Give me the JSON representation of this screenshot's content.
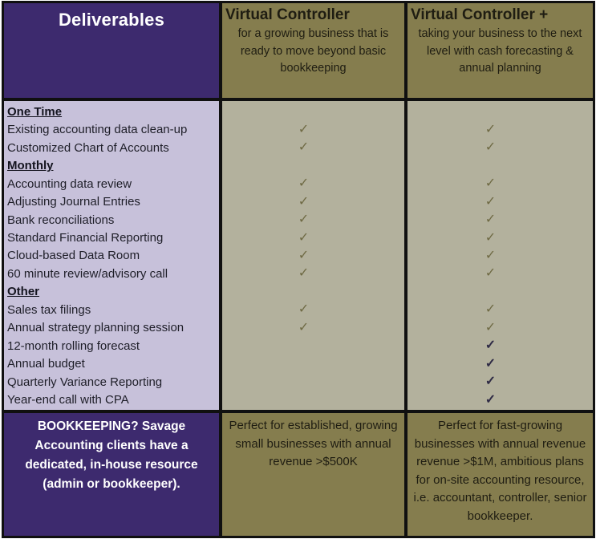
{
  "palette": {
    "purple": "#3D2A6E",
    "purple_light": "#C7C1DA",
    "olive": "#857D4E",
    "olive_light": "#B3B19D",
    "check_olive": "#6E6943",
    "check_dark": "#2F2B45",
    "border_black": "#101010"
  },
  "check_glyph": "✓",
  "columns": {
    "deliverables": {
      "title": "Deliverables",
      "footer": "BOOKKEEPING? Savage Accounting clients have a dedicated, in-house resource (admin or bookkeeper)."
    },
    "vc": {
      "title": "Virtual Controller",
      "subtitle": "for a growing business that is ready to move beyond basic bookkeeping",
      "footer": "Perfect for established, growing small businesses with annual revenue >$500K"
    },
    "vcp": {
      "title": "Virtual Controller +",
      "subtitle": "taking your business to the next level with cash forecasting & annual planning",
      "footer": "Perfect for fast-growing businesses with annual revenue revenue >$1M, ambitious plans for on-site accounting resource, i.e. accountant, controller, senior bookkeeper."
    }
  },
  "rows": [
    {
      "label": "One Time",
      "type": "section",
      "vc": false,
      "vcp": false
    },
    {
      "label": "Existing accounting data clean-up",
      "type": "item",
      "vc": true,
      "vcp": true
    },
    {
      "label": "Customized Chart of Accounts",
      "type": "item",
      "vc": true,
      "vcp": true
    },
    {
      "label": "Monthly",
      "type": "section",
      "vc": false,
      "vcp": false
    },
    {
      "label": "Accounting data review",
      "type": "item",
      "vc": true,
      "vcp": true
    },
    {
      "label": "Adjusting Journal Entries",
      "type": "item",
      "vc": true,
      "vcp": true
    },
    {
      "label": "Bank reconciliations",
      "type": "item",
      "vc": true,
      "vcp": true
    },
    {
      "label": "Standard Financial Reporting",
      "type": "item",
      "vc": true,
      "vcp": true
    },
    {
      "label": "Cloud-based Data Room",
      "type": "item",
      "vc": true,
      "vcp": true
    },
    {
      "label": "60 minute review/advisory call",
      "type": "item",
      "vc": true,
      "vcp": true
    },
    {
      "label": "Other",
      "type": "section",
      "vc": false,
      "vcp": false
    },
    {
      "label": "Sales tax filings",
      "type": "item",
      "vc": true,
      "vcp": true
    },
    {
      "label": "Annual strategy planning session",
      "type": "item",
      "vc": true,
      "vcp": true
    },
    {
      "label": "12-month rolling forecast",
      "type": "item",
      "vc": false,
      "vcp": true,
      "vcp_dark": true
    },
    {
      "label": "Annual budget",
      "type": "item",
      "vc": false,
      "vcp": true,
      "vcp_dark": true
    },
    {
      "label": "Quarterly Variance Reporting",
      "type": "item",
      "vc": false,
      "vcp": true,
      "vcp_dark": true
    },
    {
      "label": "Year-end call with CPA",
      "type": "item",
      "vc": false,
      "vcp": true,
      "vcp_dark": true
    }
  ]
}
